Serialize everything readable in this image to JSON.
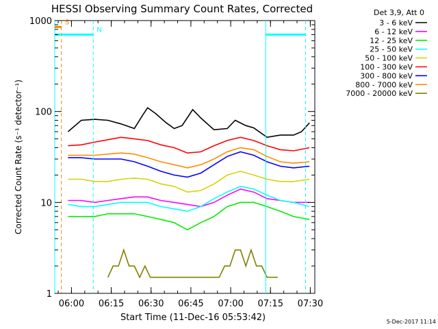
{
  "chart_data": {
    "type": "line",
    "title": "HESSI Observing Summary Count Rates, Corrected",
    "xlabel": "Start Time (11-Dec-16 05:53:42)",
    "ylabel": "Corrected Count Rate (s⁻¹ detector⁻¹)",
    "y_scale": "log",
    "ylim": [
      1,
      1000
    ],
    "xlim_minutes": [
      0,
      98
    ],
    "x_ticks": [
      {
        "label": "06:00",
        "min": 6.3
      },
      {
        "label": "06:15",
        "min": 21.3
      },
      {
        "label": "06:30",
        "min": 36.3
      },
      {
        "label": "06:45",
        "min": 51.3
      },
      {
        "label": "07:00",
        "min": 66.3
      },
      {
        "label": "07:15",
        "min": 81.3
      },
      {
        "label": "07:30",
        "min": 96.3
      }
    ],
    "y_ticks": [
      {
        "label": "1",
        "value": 1
      },
      {
        "label": "10",
        "value": 10
      },
      {
        "label": "100",
        "value": 100
      },
      {
        "label": "1000",
        "value": 1000
      }
    ],
    "legend_title": "Det 3,9, Att 0",
    "legend_position": "top-right",
    "series": [
      {
        "name": "3 - 6 keV",
        "color": "#000000",
        "x": [
          5,
          10,
          15,
          20,
          25,
          30,
          33,
          35,
          38,
          42,
          45,
          48,
          52,
          55,
          60,
          65,
          68,
          72,
          75,
          80,
          85,
          90,
          93,
          96
        ],
        "values": [
          60,
          80,
          82,
          80,
          73,
          65,
          90,
          110,
          95,
          75,
          65,
          70,
          105,
          85,
          63,
          65,
          80,
          70,
          66,
          52,
          55,
          55,
          60,
          75
        ]
      },
      {
        "name": "6 - 12 keV",
        "color": "#ff00ff",
        "x": [
          5,
          10,
          15,
          20,
          25,
          30,
          35,
          40,
          45,
          50,
          55,
          60,
          65,
          70,
          75,
          80,
          85,
          90,
          96
        ],
        "values": [
          10.5,
          10.5,
          10,
          10.5,
          11,
          11.5,
          11.5,
          10.5,
          10,
          9.5,
          9,
          10,
          12,
          14,
          13,
          11,
          10.5,
          10,
          10
        ]
      },
      {
        "name": "12 - 25 keV",
        "color": "#00ee00",
        "x": [
          5,
          10,
          15,
          20,
          25,
          30,
          35,
          40,
          45,
          50,
          55,
          60,
          65,
          70,
          75,
          80,
          85,
          90,
          96
        ],
        "values": [
          7,
          7,
          7,
          7.5,
          7.5,
          7.5,
          7,
          6.5,
          6,
          5,
          6,
          7,
          9,
          10,
          10,
          9,
          8,
          7,
          6.5
        ]
      },
      {
        "name": "25 - 50 keV",
        "color": "#00ffff",
        "x": [
          5,
          10,
          15,
          20,
          25,
          30,
          35,
          40,
          45,
          50,
          55,
          60,
          65,
          70,
          75,
          80,
          85,
          90,
          96
        ],
        "values": [
          9.5,
          9,
          9,
          9.5,
          10,
          10,
          10,
          9,
          8.5,
          8,
          9,
          11,
          13,
          15,
          14,
          12,
          10.5,
          10,
          9
        ]
      },
      {
        "name": "50 - 100 keV",
        "color": "#d4d400",
        "x": [
          5,
          10,
          15,
          20,
          25,
          30,
          35,
          40,
          45,
          50,
          55,
          60,
          65,
          70,
          75,
          80,
          85,
          90,
          96
        ],
        "values": [
          18,
          18,
          17,
          17,
          18,
          18.5,
          18,
          16,
          15,
          13,
          13.5,
          16,
          20,
          22,
          20,
          18,
          17,
          17,
          18
        ]
      },
      {
        "name": "100 - 300 keV",
        "color": "#ff0000",
        "x": [
          5,
          10,
          15,
          20,
          25,
          30,
          35,
          40,
          45,
          50,
          55,
          60,
          65,
          70,
          75,
          80,
          85,
          90,
          96
        ],
        "values": [
          42,
          43,
          46,
          49,
          52,
          50,
          48,
          43,
          40,
          35,
          36,
          42,
          48,
          52,
          48,
          42,
          38,
          37,
          40
        ]
      },
      {
        "name": "300 - 800 keV",
        "color": "#0000ff",
        "x": [
          5,
          10,
          15,
          20,
          25,
          30,
          35,
          40,
          45,
          50,
          55,
          60,
          65,
          70,
          75,
          80,
          85,
          90,
          96
        ],
        "values": [
          31,
          31,
          30,
          30,
          30,
          28,
          25,
          22,
          20,
          19,
          21,
          26,
          32,
          36,
          33,
          28,
          25,
          24,
          25
        ]
      },
      {
        "name": "800 - 7000 keV",
        "color": "#ff8c00",
        "x": [
          5,
          10,
          15,
          20,
          25,
          30,
          35,
          40,
          45,
          50,
          55,
          60,
          65,
          70,
          75,
          80,
          85,
          90,
          96
        ],
        "values": [
          33,
          33,
          33,
          34,
          35,
          34,
          31,
          28,
          26,
          24,
          26,
          30,
          36,
          40,
          38,
          32,
          28,
          27,
          28
        ]
      },
      {
        "name": "7000 - 20000 keV",
        "color": "#808000",
        "x": [
          20,
          22,
          24,
          26,
          28,
          30,
          32,
          34,
          36,
          38,
          62,
          64,
          66,
          68,
          70,
          72,
          74,
          76,
          78,
          80,
          82,
          84
        ],
        "values": [
          1.5,
          2,
          2,
          3,
          2,
          2,
          1.5,
          2,
          1.5,
          1.5,
          1.5,
          2,
          2,
          3,
          3,
          2,
          3,
          2,
          2,
          1.5,
          1.5,
          1.5
        ]
      }
    ],
    "flags": [
      {
        "label": "S",
        "color": "#ff8000",
        "bar_from_min": 0,
        "bar_to_min": 2.5,
        "level": 850,
        "dashed_at_min": 2.5
      },
      {
        "label": "N",
        "color": "#00ffff",
        "bar_from_min": 0,
        "bar_to_min": 14.5,
        "level": 700,
        "dashed_at_min": 14.5
      },
      {
        "label": "",
        "color": "#00ffff",
        "bar_from_min": 79.5,
        "bar_to_min": 94.5,
        "level": 700,
        "dashed_at_min": 94.5
      }
    ],
    "solid_markers_min": [
      0,
      79.5
    ]
  },
  "footer": {
    "timestamp": "5-Dec-2017 11:14"
  }
}
